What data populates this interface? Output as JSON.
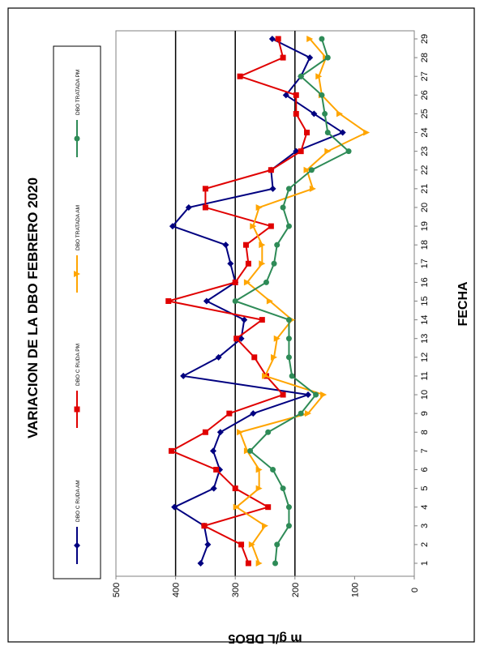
{
  "chart_data": {
    "type": "line",
    "title": "VARIACION DE LA DBO FEBRERO  2020",
    "xlabel": "FECHA",
    "ylabel": "m g/L DBO5",
    "x": [
      1,
      2,
      3,
      4,
      5,
      6,
      7,
      8,
      9,
      10,
      11,
      12,
      13,
      14,
      15,
      16,
      17,
      18,
      19,
      20,
      21,
      22,
      23,
      24,
      25,
      26,
      27,
      28,
      29
    ],
    "ylim": [
      0,
      500
    ],
    "yticks": [
      0,
      100,
      200,
      300,
      400,
      500
    ],
    "grid": "major y gridlines at 200, 300, 400",
    "legend_position": "left",
    "series": [
      {
        "name": "DBO C RUDA AM",
        "color": "#000080",
        "marker": "diamond",
        "values": [
          358,
          346,
          352,
          402,
          336,
          326,
          337,
          325,
          270,
          178,
          387,
          328,
          290,
          285,
          348,
          300,
          308,
          316,
          405,
          378,
          237,
          240,
          198,
          120,
          168,
          215,
          190,
          175,
          238
        ]
      },
      {
        "name": "DBO C RUDA PM",
        "color": "#e00000",
        "marker": "square",
        "values": [
          278,
          290,
          352,
          245,
          300,
          332,
          407,
          350,
          310,
          220,
          248,
          268,
          298,
          255,
          412,
          300,
          278,
          282,
          240,
          350,
          350,
          240,
          190,
          180,
          198,
          198,
          292,
          220,
          228
        ]
      },
      {
        "name": "DBO TRATADA AM",
        "color": "#ffa500",
        "marker": "triangle",
        "values": [
          260,
          272,
          250,
          298,
          260,
          260,
          280,
          292,
          178,
          152,
          250,
          235,
          230,
          205,
          242,
          280,
          255,
          255,
          270,
          260,
          170,
          180,
          145,
          80,
          125,
          155,
          160,
          148,
          175
        ]
      },
      {
        "name": "DBO TRATADA PM",
        "color": "#2e8b57",
        "marker": "circle",
        "values": [
          233,
          230,
          210,
          210,
          220,
          237,
          275,
          245,
          190,
          165,
          205,
          210,
          210,
          210,
          300,
          248,
          235,
          230,
          210,
          220,
          210,
          172,
          110,
          145,
          150,
          155,
          190,
          145,
          155
        ]
      }
    ]
  }
}
